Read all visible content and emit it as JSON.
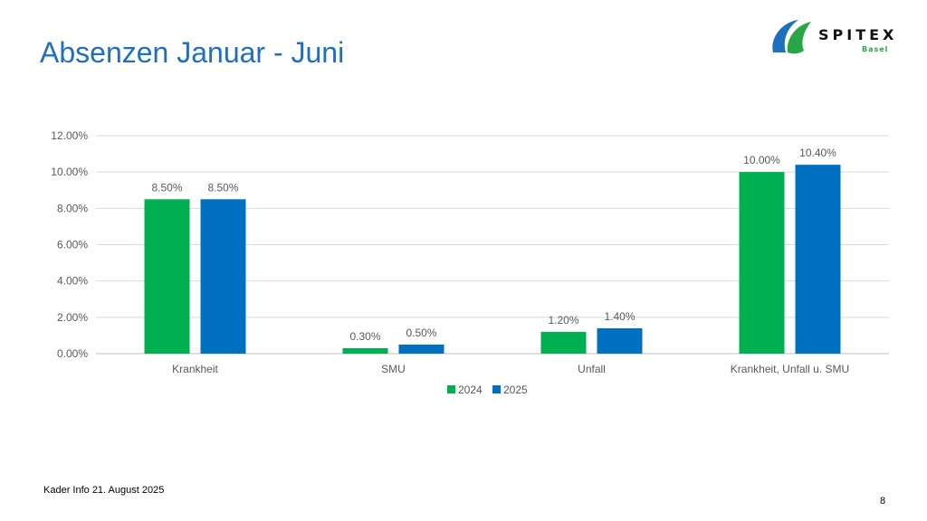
{
  "slide": {
    "title": "Absenzen Januar - Juni",
    "footer": "Kader Info 21. August 2025",
    "page_number": "8"
  },
  "logo": {
    "word": "SPITEX",
    "sub": "Basel",
    "colors": {
      "green": "#2aa546",
      "blue": "#1f6fbf"
    }
  },
  "chart_data": {
    "type": "bar",
    "title": "",
    "xlabel": "",
    "ylabel": "",
    "categories": [
      "Krankheit",
      "SMU",
      "Unfall",
      "Krankheit, Unfall u. SMU"
    ],
    "series": [
      {
        "name": "2024",
        "color": "#00b050",
        "values": [
          8.5,
          0.3,
          1.2,
          10.0
        ],
        "labels": [
          "8.50%",
          "0.30%",
          "1.20%",
          "10.00%"
        ]
      },
      {
        "name": "2025",
        "color": "#0070c0",
        "values": [
          8.5,
          0.5,
          1.4,
          10.4
        ],
        "labels": [
          "8.50%",
          "0.50%",
          "1.40%",
          "10.40%"
        ]
      }
    ],
    "ylim": [
      0,
      12
    ],
    "yticks": [
      0,
      2,
      4,
      6,
      8,
      10,
      12
    ],
    "ytick_labels": [
      "0.00%",
      "2.00%",
      "4.00%",
      "6.00%",
      "8.00%",
      "10.00%",
      "12.00%"
    ],
    "grid": true,
    "legend_position": "bottom"
  }
}
